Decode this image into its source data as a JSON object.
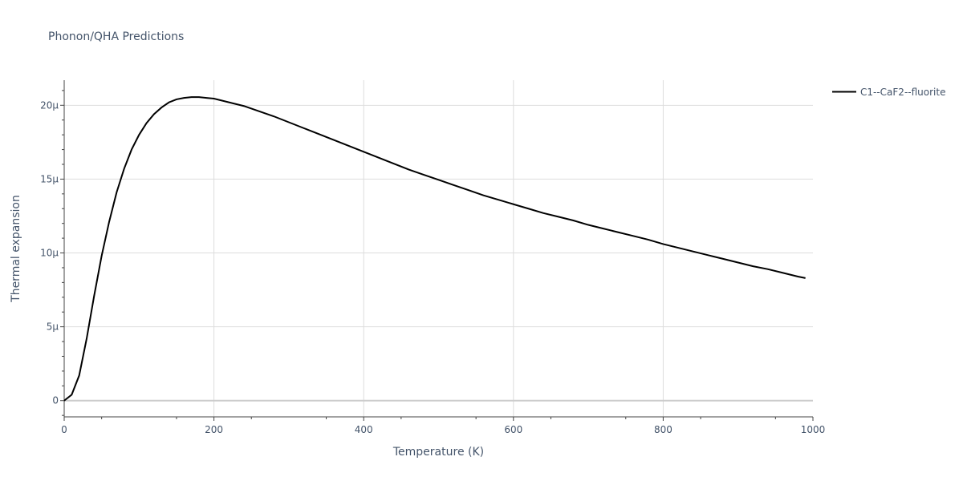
{
  "chart_data": {
    "type": "line",
    "title": "Phonon/QHA Predictions",
    "xlabel": "Temperature (K)",
    "ylabel": "Thermal expansion",
    "xlim": [
      0,
      1000
    ],
    "ylim": [
      -1.1e-06,
      2.17e-05
    ],
    "x_ticks": [
      {
        "value": 0,
        "label": "0"
      },
      {
        "value": 200,
        "label": "200"
      },
      {
        "value": 400,
        "label": "400"
      },
      {
        "value": 600,
        "label": "600"
      },
      {
        "value": 800,
        "label": "800"
      },
      {
        "value": 1000,
        "label": "1000"
      }
    ],
    "y_ticks": [
      {
        "value": 0,
        "label": "0"
      },
      {
        "value": 5e-06,
        "label": "5μ"
      },
      {
        "value": 1e-05,
        "label": "10μ"
      },
      {
        "value": 1.5e-05,
        "label": "15μ"
      },
      {
        "value": 2e-05,
        "label": "20μ"
      }
    ],
    "grid": true,
    "legend_position": "top-right",
    "series": [
      {
        "name": "C1--CaF2--fluorite",
        "color": "#000000",
        "x": [
          0,
          10,
          20,
          30,
          40,
          50,
          60,
          70,
          80,
          90,
          100,
          110,
          120,
          130,
          140,
          150,
          160,
          170,
          180,
          190,
          200,
          220,
          240,
          260,
          280,
          300,
          320,
          340,
          360,
          380,
          400,
          420,
          440,
          460,
          480,
          500,
          520,
          540,
          560,
          580,
          600,
          620,
          640,
          660,
          680,
          700,
          720,
          740,
          760,
          780,
          800,
          820,
          840,
          860,
          880,
          900,
          920,
          940,
          960,
          980,
          990
        ],
        "y": [
          0,
          4e-07,
          1.7e-06,
          4.2e-06,
          7.1e-06,
          9.8e-06,
          1.21e-05,
          1.41e-05,
          1.57e-05,
          1.7e-05,
          1.8e-05,
          1.88e-05,
          1.94e-05,
          1.985e-05,
          2.02e-05,
          2.04e-05,
          2.05e-05,
          2.055e-05,
          2.055e-05,
          2.05e-05,
          2.045e-05,
          2.02e-05,
          1.995e-05,
          1.96e-05,
          1.925e-05,
          1.885e-05,
          1.845e-05,
          1.805e-05,
          1.765e-05,
          1.725e-05,
          1.685e-05,
          1.645e-05,
          1.605e-05,
          1.565e-05,
          1.53e-05,
          1.495e-05,
          1.46e-05,
          1.425e-05,
          1.39e-05,
          1.36e-05,
          1.33e-05,
          1.3e-05,
          1.27e-05,
          1.245e-05,
          1.22e-05,
          1.19e-05,
          1.165e-05,
          1.14e-05,
          1.115e-05,
          1.09e-05,
          1.06e-05,
          1.035e-05,
          1.01e-05,
          9.85e-06,
          9.6e-06,
          9.35e-06,
          9.1e-06,
          8.9e-06,
          8.65e-06,
          8.4e-06,
          8.3e-06
        ]
      }
    ]
  }
}
